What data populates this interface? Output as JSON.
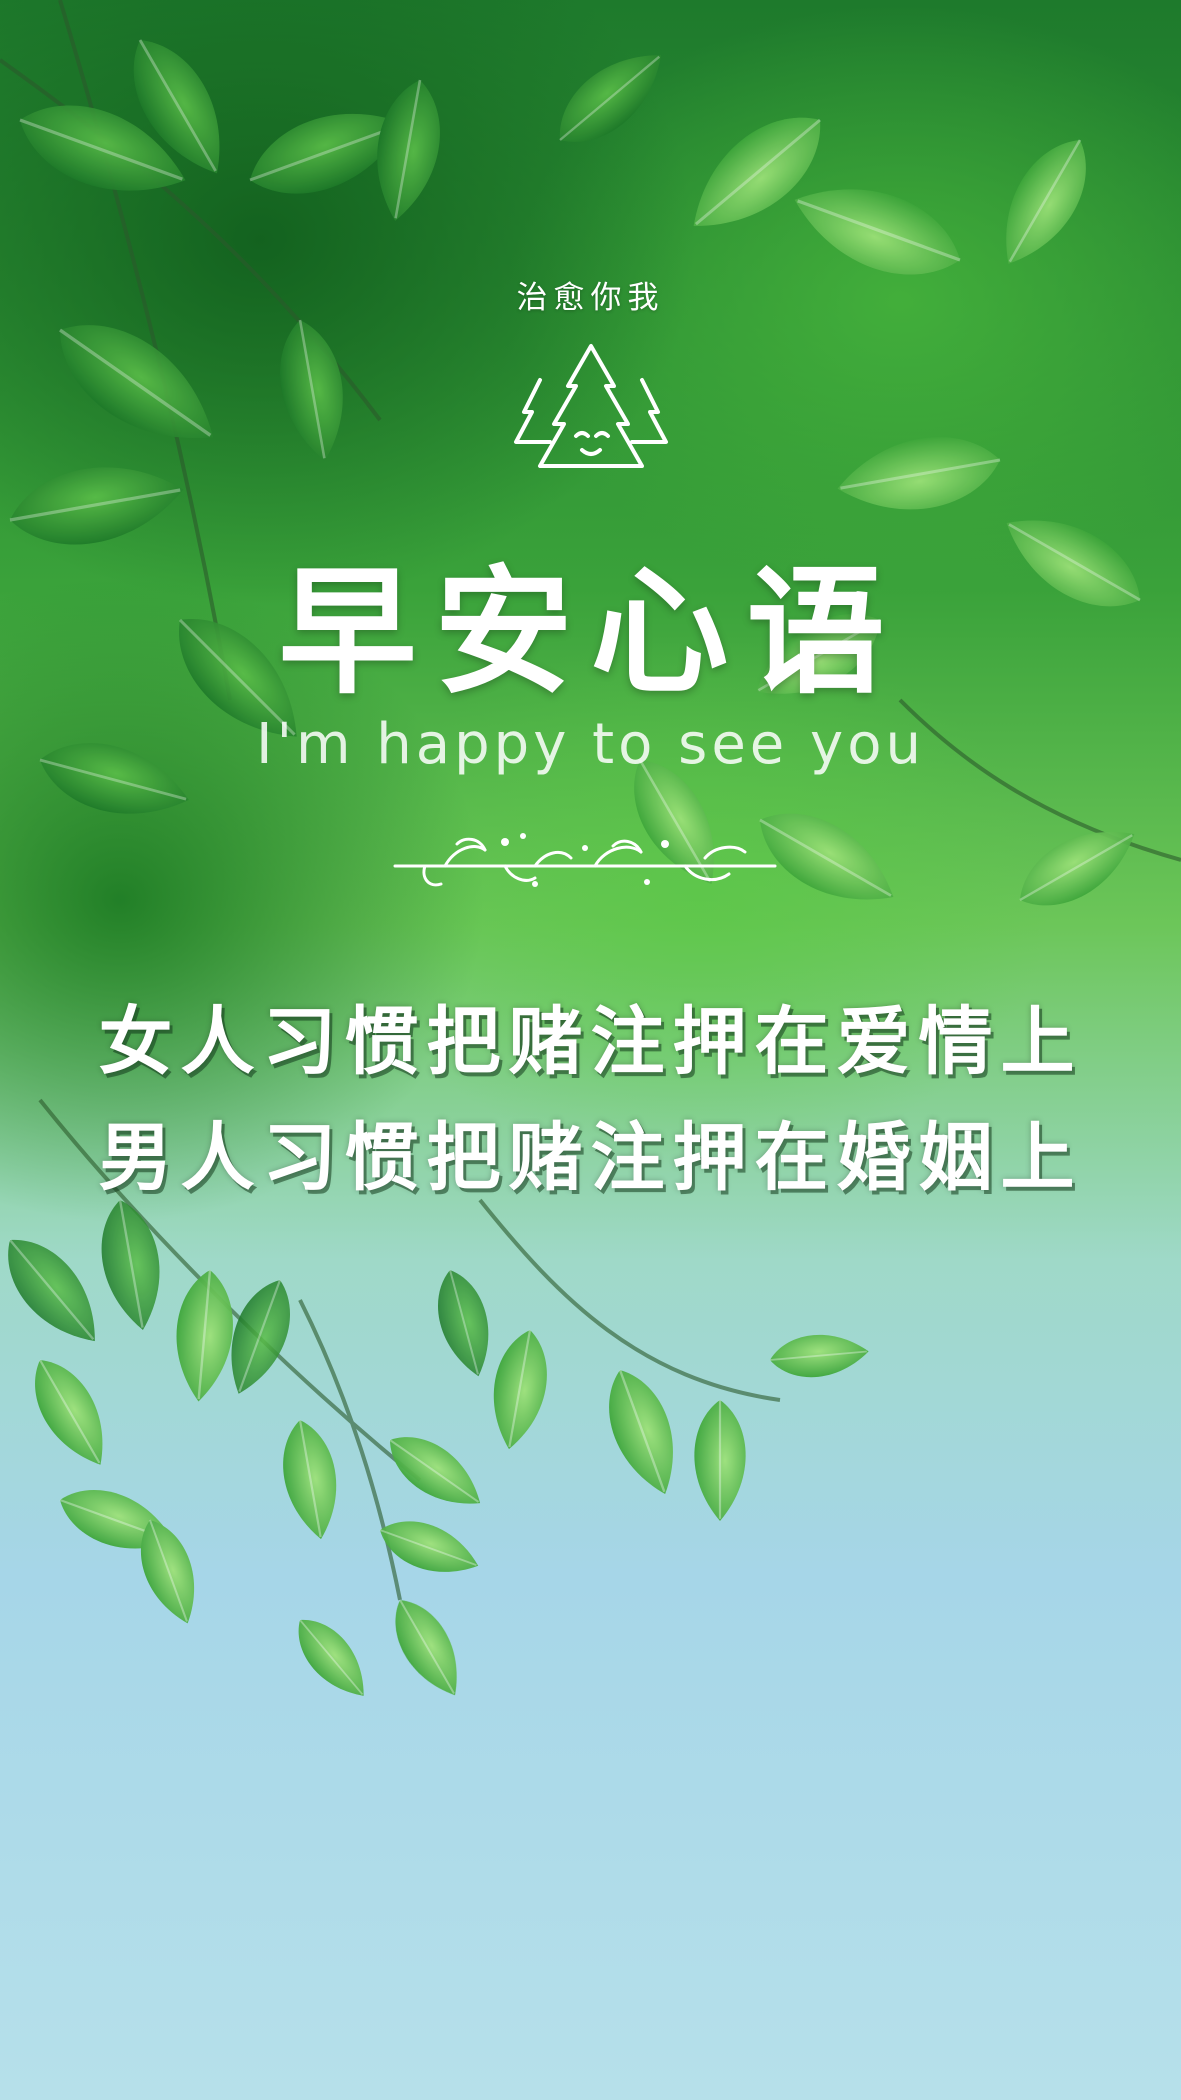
{
  "poster": {
    "tagline": "治愈你我",
    "title": "早安心语",
    "subtitle": "I'm happy to see you",
    "quote_lines": [
      "女人习惯把赌注押在爱情上",
      "男人习惯把赌注押在婚姻上"
    ]
  },
  "icons": {
    "tree_icon": "smiling-pine-trees-icon",
    "ornament": "leaf-vine-divider-icon"
  },
  "colors": {
    "text": "#ffffff",
    "leaf_dark": "#1e7a2c",
    "leaf_light": "#7fd35f",
    "sky": "#a6d6e8"
  }
}
